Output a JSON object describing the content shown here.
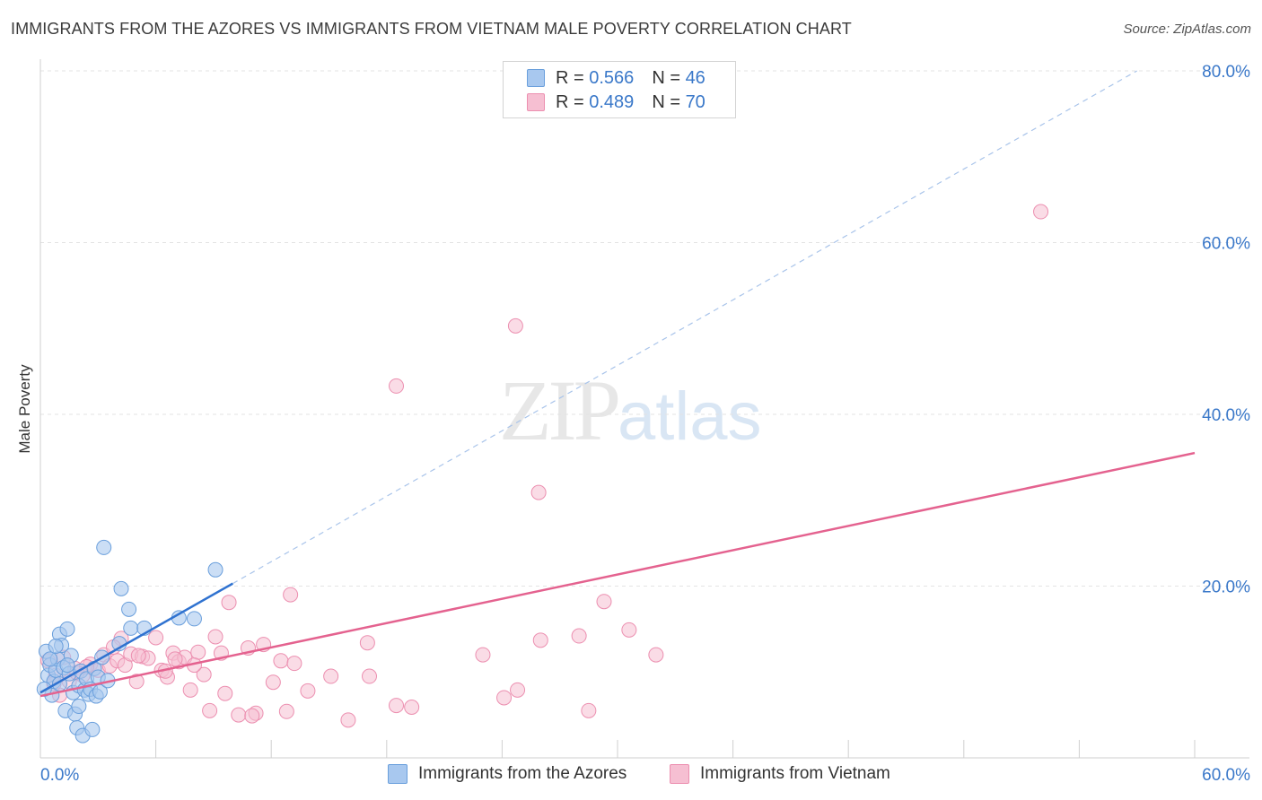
{
  "header": {
    "title": "IMMIGRANTS FROM THE AZORES VS IMMIGRANTS FROM VIETNAM MALE POVERTY CORRELATION CHART",
    "source": "Source: ZipAtlas.com"
  },
  "watermark": {
    "zip": "ZIP",
    "atlas": "atlas"
  },
  "legend": {
    "r_label": "R =",
    "n_label": "N =",
    "azores": {
      "r": "0.566",
      "n": "46"
    },
    "vietnam": {
      "r": "0.489",
      "n": "70"
    }
  },
  "colors": {
    "azores_fill": "#a8c8ef",
    "azores_stroke": "#6a9fdc",
    "azores_line": "#2f72d0",
    "vietnam_fill": "#f6bfd2",
    "vietnam_stroke": "#ec8fb0",
    "vietnam_line": "#e4628f",
    "tick_label": "#3a78c9",
    "grid": "#e3e3e3"
  },
  "chart_data": {
    "type": "scatter",
    "title": "IMMIGRANTS FROM THE AZORES VS IMMIGRANTS FROM VIETNAM MALE POVERTY CORRELATION CHART",
    "xlabel": "",
    "ylabel": "Male Poverty",
    "xlim": [
      0,
      60
    ],
    "ylim": [
      0,
      80
    ],
    "x_tick_labels": [
      "0.0%",
      "60.0%"
    ],
    "y_ticks": [
      20,
      40,
      60,
      80
    ],
    "y_tick_labels": [
      "20.0%",
      "40.0%",
      "60.0%",
      "80.0%"
    ],
    "legend_position": "top-center",
    "series": [
      {
        "name": "Immigrants from the Azores",
        "color": "#a8c8ef",
        "trend": {
          "x": [
            0,
            10
          ],
          "y": [
            7.6,
            20.3
          ],
          "extended_to": [
            57,
            80
          ]
        },
        "points": [
          [
            0.3,
            12.4
          ],
          [
            0.4,
            9.6
          ],
          [
            0.5,
            10.8
          ],
          [
            0.6,
            7.3
          ],
          [
            0.7,
            8.9
          ],
          [
            0.8,
            10.2
          ],
          [
            0.9,
            11.5
          ],
          [
            1.0,
            14.4
          ],
          [
            1.1,
            13.1
          ],
          [
            1.2,
            10.5
          ],
          [
            1.3,
            5.5
          ],
          [
            1.4,
            15.0
          ],
          [
            1.5,
            9.8
          ],
          [
            1.6,
            11.9
          ],
          [
            1.7,
            7.6
          ],
          [
            1.8,
            5.1
          ],
          [
            1.9,
            3.5
          ],
          [
            2.0,
            8.4
          ],
          [
            2.1,
            10.1
          ],
          [
            2.2,
            2.6
          ],
          [
            2.3,
            7.9
          ],
          [
            2.4,
            9.2
          ],
          [
            2.5,
            7.4
          ],
          [
            2.6,
            8.0
          ],
          [
            2.7,
            3.3
          ],
          [
            2.8,
            10.4
          ],
          [
            2.9,
            7.2
          ],
          [
            3.0,
            9.4
          ],
          [
            3.1,
            7.7
          ],
          [
            3.2,
            11.7
          ],
          [
            3.5,
            9.0
          ],
          [
            3.3,
            24.5
          ],
          [
            4.1,
            13.3
          ],
          [
            4.2,
            19.7
          ],
          [
            4.6,
            17.3
          ],
          [
            4.7,
            15.1
          ],
          [
            5.4,
            15.1
          ],
          [
            7.2,
            16.3
          ],
          [
            8.0,
            16.2
          ],
          [
            9.1,
            21.9
          ],
          [
            0.2,
            8.0
          ],
          [
            0.5,
            11.5
          ],
          [
            1.0,
            8.6
          ],
          [
            1.4,
            10.8
          ],
          [
            2.0,
            6.0
          ],
          [
            0.8,
            13.0
          ]
        ]
      },
      {
        "name": "Immigrants from Vietnam",
        "color": "#f6bfd2",
        "trend": {
          "x": [
            0,
            60
          ],
          "y": [
            7.2,
            35.5
          ]
        },
        "points": [
          [
            0.4,
            11.3
          ],
          [
            0.8,
            9.6
          ],
          [
            1.2,
            11.7
          ],
          [
            1.5,
            8.9
          ],
          [
            1.8,
            10.4
          ],
          [
            2.2,
            9.6
          ],
          [
            2.6,
            10.9
          ],
          [
            3.0,
            10.2
          ],
          [
            3.3,
            12.0
          ],
          [
            3.6,
            10.7
          ],
          [
            4.0,
            11.3
          ],
          [
            4.4,
            10.8
          ],
          [
            4.7,
            12.1
          ],
          [
            5.0,
            8.9
          ],
          [
            5.3,
            11.8
          ],
          [
            5.6,
            11.6
          ],
          [
            6.0,
            14.0
          ],
          [
            6.3,
            10.2
          ],
          [
            6.6,
            9.4
          ],
          [
            6.9,
            12.2
          ],
          [
            7.2,
            11.2
          ],
          [
            7.5,
            11.7
          ],
          [
            7.8,
            7.9
          ],
          [
            8.2,
            12.3
          ],
          [
            8.5,
            9.7
          ],
          [
            8.8,
            5.5
          ],
          [
            9.1,
            14.1
          ],
          [
            9.4,
            12.2
          ],
          [
            9.8,
            18.1
          ],
          [
            10.3,
            5.0
          ],
          [
            10.8,
            12.8
          ],
          [
            11.2,
            5.2
          ],
          [
            11.6,
            13.2
          ],
          [
            12.1,
            8.8
          ],
          [
            12.5,
            11.3
          ],
          [
            13.0,
            19.0
          ],
          [
            13.9,
            7.8
          ],
          [
            15.1,
            9.5
          ],
          [
            16.0,
            4.4
          ],
          [
            17.1,
            9.5
          ],
          [
            18.5,
            6.1
          ],
          [
            19.3,
            5.9
          ],
          [
            23.0,
            12.0
          ],
          [
            24.1,
            7.0
          ],
          [
            24.8,
            7.9
          ],
          [
            26.0,
            13.7
          ],
          [
            28.0,
            14.2
          ],
          [
            28.5,
            5.5
          ],
          [
            29.3,
            18.2
          ],
          [
            30.6,
            14.9
          ],
          [
            32.0,
            12.0
          ],
          [
            25.9,
            30.9
          ],
          [
            24.7,
            50.3
          ],
          [
            18.5,
            43.3
          ],
          [
            52.0,
            63.6
          ],
          [
            1.0,
            7.3
          ],
          [
            2.4,
            10.6
          ],
          [
            4.2,
            13.9
          ],
          [
            6.5,
            10.1
          ],
          [
            8.0,
            10.8
          ],
          [
            11.0,
            4.9
          ],
          [
            13.2,
            11.0
          ],
          [
            17.0,
            13.4
          ],
          [
            3.8,
            12.9
          ],
          [
            5.1,
            11.9
          ],
          [
            9.6,
            7.5
          ],
          [
            12.8,
            5.4
          ],
          [
            7.0,
            11.5
          ],
          [
            0.7,
            8.6
          ],
          [
            1.9,
            9.9
          ]
        ]
      }
    ]
  }
}
